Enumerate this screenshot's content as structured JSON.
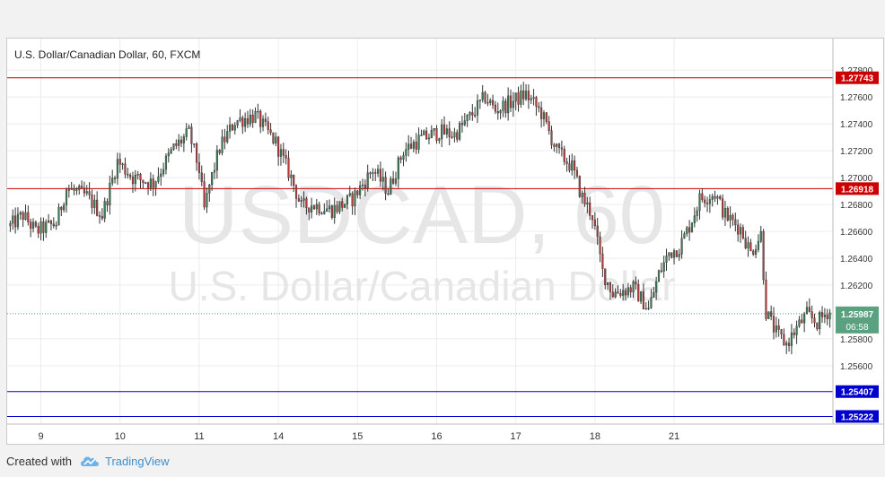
{
  "chart_data": {
    "type": "candlestick",
    "title": "U.S. Dollar/Canadian Dollar, 60, FXCM",
    "watermark_symbol": "USDCAD, 60",
    "watermark_name": "U.S. Dollar/Canadian Dollar",
    "x_tick_labels": [
      "9",
      "10",
      "11",
      "14",
      "15",
      "16",
      "17",
      "18",
      "21"
    ],
    "y_tick_labels": [
      "1.27800",
      "1.27600",
      "1.27400",
      "1.27200",
      "1.27000",
      "1.26800",
      "1.26600",
      "1.26400",
      "1.26200",
      "1.25800",
      "1.25600"
    ],
    "y_ticks": [
      1.278,
      1.276,
      1.274,
      1.272,
      1.27,
      1.268,
      1.266,
      1.264,
      1.262,
      1.258,
      1.256
    ],
    "ylim": [
      1.25165,
      1.28035
    ],
    "horizontal_lines": [
      {
        "label": "1.27743",
        "value": 1.27743,
        "color": "#cc0000"
      },
      {
        "label": "1.26918",
        "value": 1.26918,
        "color": "#cc0000"
      },
      {
        "label": "1.25407",
        "value": 1.25407,
        "color": "#0000cc"
      },
      {
        "label": "1.25222",
        "value": 1.25222,
        "color": "#0000cc"
      }
    ],
    "current_price": {
      "label": "1.25987",
      "value": 1.25987,
      "countdown": "06:58",
      "color": "#5aa27f"
    },
    "anchors": [
      [
        0,
        1.2664
      ],
      [
        5,
        1.2672
      ],
      [
        10,
        1.266
      ],
      [
        18,
        1.2666
      ],
      [
        22,
        1.2692
      ],
      [
        30,
        1.2686
      ],
      [
        36,
        1.2672
      ],
      [
        42,
        1.2712
      ],
      [
        48,
        1.27
      ],
      [
        56,
        1.2696
      ],
      [
        64,
        1.2722
      ],
      [
        70,
        1.2733
      ],
      [
        74,
        1.2706
      ],
      [
        76,
        1.2676
      ],
      [
        78,
        1.2694
      ],
      [
        82,
        1.2722
      ],
      [
        88,
        1.2742
      ],
      [
        96,
        1.2746
      ],
      [
        104,
        1.2726
      ],
      [
        110,
        1.27
      ],
      [
        114,
        1.2678
      ],
      [
        118,
        1.268
      ],
      [
        126,
        1.2676
      ],
      [
        134,
        1.2684
      ],
      [
        142,
        1.2706
      ],
      [
        148,
        1.269
      ],
      [
        154,
        1.272
      ],
      [
        160,
        1.2728
      ],
      [
        168,
        1.2734
      ],
      [
        174,
        1.2732
      ],
      [
        180,
        1.2745
      ],
      [
        186,
        1.276
      ],
      [
        190,
        1.275
      ],
      [
        196,
        1.2756
      ],
      [
        202,
        1.2762
      ],
      [
        208,
        1.2748
      ],
      [
        214,
        1.272
      ],
      [
        220,
        1.2708
      ],
      [
        224,
        1.2685
      ],
      [
        228,
        1.2672
      ],
      [
        232,
        1.263
      ],
      [
        236,
        1.2614
      ],
      [
        244,
        1.2618
      ],
      [
        250,
        1.2602
      ],
      [
        254,
        1.2628
      ],
      [
        258,
        1.2644
      ],
      [
        262,
        1.2648
      ],
      [
        266,
        1.2664
      ],
      [
        270,
        1.2684
      ],
      [
        276,
        1.2688
      ],
      [
        280,
        1.2672
      ],
      [
        286,
        1.2662
      ],
      [
        290,
        1.2644
      ],
      [
        294,
        1.2658
      ],
      [
        296,
        1.26
      ],
      [
        300,
        1.2584
      ],
      [
        304,
        1.2576
      ],
      [
        308,
        1.2588
      ],
      [
        312,
        1.2598
      ],
      [
        316,
        1.2592
      ],
      [
        320,
        1.26
      ]
    ],
    "x_tick_bar_index": [
      12,
      43,
      74,
      105,
      136,
      167,
      198,
      229,
      260
    ]
  },
  "footer": {
    "created": "Created with",
    "brand": "TradingView"
  },
  "colors": {
    "up": "#3a7d55",
    "down": "#b73b3b",
    "wick": "#333333",
    "grid": "#ececec",
    "axis_text": "#333333"
  },
  "icons": {
    "brand_icon": "tradingview-cloud-icon"
  }
}
